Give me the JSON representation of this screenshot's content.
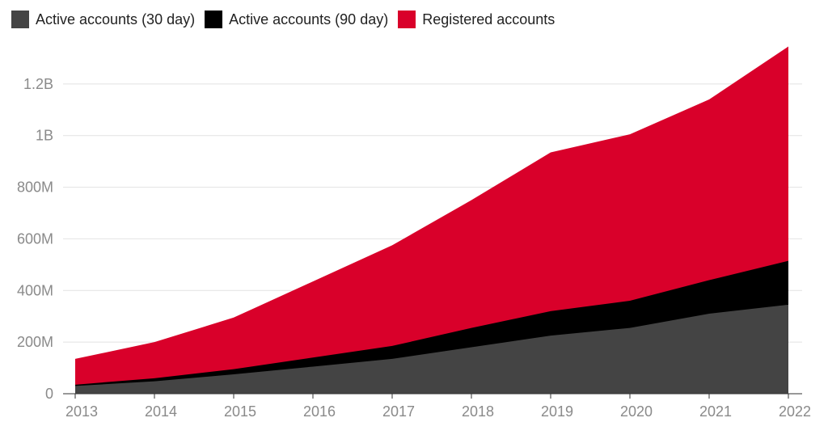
{
  "chart_data": {
    "type": "area",
    "stacked": true,
    "x": [
      "2013",
      "2014",
      "2015",
      "2016",
      "2017",
      "2018",
      "2019",
      "2020",
      "2021",
      "2022"
    ],
    "series": [
      {
        "name": "Active accounts (30 day)",
        "color": "#444444",
        "values": [
          30,
          48,
          75,
          105,
          135,
          180,
          225,
          255,
          310,
          345
        ]
      },
      {
        "name": "Active accounts (90 day)",
        "color": "#000000",
        "values": [
          35,
          60,
          95,
          140,
          185,
          255,
          320,
          360,
          440,
          515
        ]
      },
      {
        "name": "Registered accounts",
        "color": "#d9002a",
        "values": [
          135,
          200,
          295,
          435,
          575,
          750,
          935,
          1005,
          1140,
          1345
        ]
      }
    ],
    "y_ticks": [
      "0",
      "200M",
      "400M",
      "600M",
      "800M",
      "1B",
      "1.2B"
    ],
    "y_tick_values": [
      0,
      200,
      400,
      600,
      800,
      1000,
      1200
    ],
    "ylim": [
      0,
      1400
    ],
    "y_unit": "millions of accounts",
    "grid": true,
    "legend_position": "top-left"
  }
}
